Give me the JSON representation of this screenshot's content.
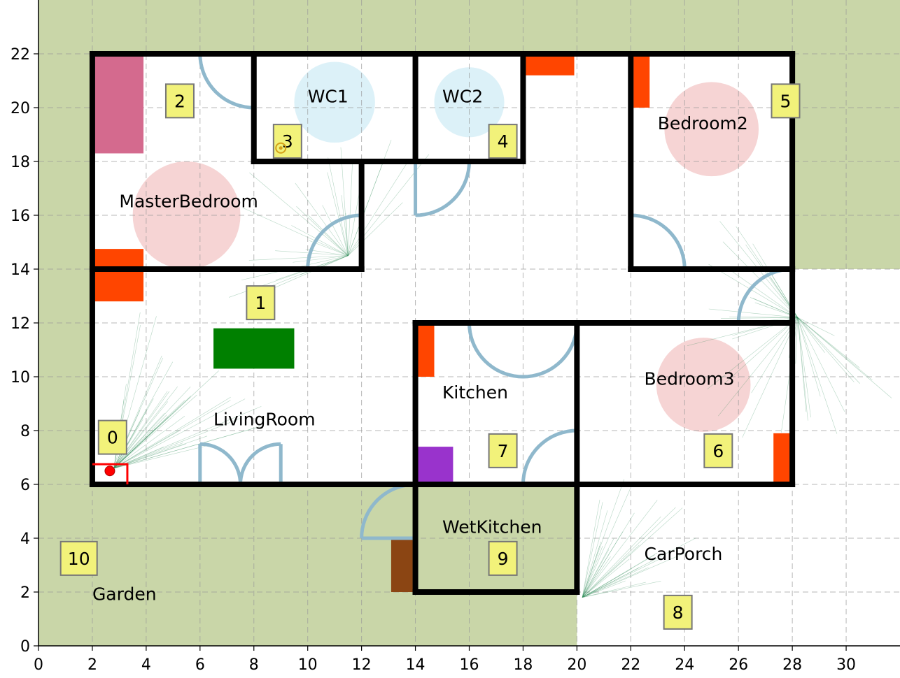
{
  "chart_data": {
    "type": "floor-plan",
    "xlim": [
      0,
      32
    ],
    "ylim": [
      0,
      24
    ],
    "x_ticks": [
      "0",
      "2",
      "4",
      "6",
      "8",
      "10",
      "12",
      "14",
      "16",
      "18",
      "20",
      "22",
      "24",
      "26",
      "28",
      "30"
    ],
    "y_ticks": [
      "0",
      "2",
      "4",
      "6",
      "8",
      "10",
      "12",
      "14",
      "16",
      "18",
      "20",
      "22"
    ],
    "grid": true,
    "colors": {
      "outdoor": "#c9d6a8",
      "wall": "#000000",
      "door": "#8fb8cc",
      "radiator": "#ff4500",
      "bed": "#d46a8e",
      "sofa": "#008000",
      "appliance": "#9933cc",
      "entrance_mat": "#8b4513",
      "marker_fill": "#f2f27a",
      "robot": "#ff0000",
      "grid": "#999999"
    },
    "outdoor_regions": [
      {
        "name": "outdoor-top",
        "x0": 0,
        "y0": 22,
        "x1": 32,
        "y1": 24
      },
      {
        "name": "outdoor-left",
        "x0": 0,
        "y0": 0,
        "x1": 2,
        "y1": 22
      },
      {
        "name": "outdoor-right",
        "x0": 28,
        "y0": 14,
        "x1": 32,
        "y1": 22
      },
      {
        "name": "garden-area",
        "x0": 2,
        "y0": 0,
        "x1": 20,
        "y1": 6
      }
    ],
    "rooms": [
      {
        "name": "MasterBedroom",
        "label_x": 3.0,
        "label_y": 16.3,
        "circle_x": 5.5,
        "circle_y": 16.0,
        "circle_r": 2.0,
        "circle_color": "#f4cccc"
      },
      {
        "name": "WC1",
        "label_x": 10.0,
        "label_y": 20.2,
        "circle_x": 11.0,
        "circle_y": 20.2,
        "circle_r": 1.5,
        "circle_color": "#d6eff7"
      },
      {
        "name": "WC2",
        "label_x": 15.0,
        "label_y": 20.2,
        "circle_x": 16.0,
        "circle_y": 20.2,
        "circle_r": 1.3,
        "circle_color": "#d6eff7"
      },
      {
        "name": "Bedroom2",
        "label_x": 23.0,
        "label_y": 19.2,
        "circle_x": 25.0,
        "circle_y": 19.2,
        "circle_r": 1.75,
        "circle_color": "#f4cccc"
      },
      {
        "name": "LivingRoom",
        "label_x": 6.5,
        "label_y": 8.2,
        "circle_x": null,
        "circle_y": null,
        "circle_r": 0,
        "circle_color": ""
      },
      {
        "name": "Kitchen",
        "label_x": 15.0,
        "label_y": 9.2,
        "circle_x": null,
        "circle_y": null,
        "circle_r": 0,
        "circle_color": ""
      },
      {
        "name": "Bedroom3",
        "label_x": 22.5,
        "label_y": 9.7,
        "circle_x": 24.7,
        "circle_y": 9.7,
        "circle_r": 1.75,
        "circle_color": "#f4cccc"
      },
      {
        "name": "WetKitchen",
        "label_x": 15.0,
        "label_y": 4.2,
        "circle_x": null,
        "circle_y": null,
        "circle_r": 0,
        "circle_color": ""
      },
      {
        "name": "CarPorch",
        "label_x": 22.5,
        "label_y": 3.2,
        "circle_x": null,
        "circle_y": null,
        "circle_r": 0,
        "circle_color": ""
      },
      {
        "name": "Garden",
        "label_x": 2.0,
        "label_y": 1.7,
        "circle_x": null,
        "circle_y": null,
        "circle_r": 0,
        "circle_color": ""
      }
    ],
    "markers": [
      {
        "id": "0",
        "x": 2.75,
        "y": 7.75
      },
      {
        "id": "1",
        "x": 8.25,
        "y": 12.75
      },
      {
        "id": "2",
        "x": 5.25,
        "y": 20.25
      },
      {
        "id": "3",
        "x": 9.25,
        "y": 18.75
      },
      {
        "id": "4",
        "x": 17.25,
        "y": 18.75
      },
      {
        "id": "5",
        "x": 27.75,
        "y": 20.25
      },
      {
        "id": "6",
        "x": 25.25,
        "y": 7.25
      },
      {
        "id": "7",
        "x": 17.25,
        "y": 7.25
      },
      {
        "id": "8",
        "x": 23.75,
        "y": 1.25
      },
      {
        "id": "9",
        "x": 17.25,
        "y": 3.25
      },
      {
        "id": "10",
        "x": 1.5,
        "y": 3.25
      }
    ],
    "walls": [
      [
        2,
        6,
        2,
        22
      ],
      [
        2,
        22,
        28,
        22
      ],
      [
        28,
        22,
        28,
        6
      ],
      [
        14,
        6,
        28,
        6
      ],
      [
        2,
        6,
        14,
        6
      ],
      [
        2,
        14,
        12,
        14
      ],
      [
        12,
        14,
        12,
        18
      ],
      [
        8,
        18,
        18,
        18
      ],
      [
        8,
        18,
        8,
        22
      ],
      [
        14,
        18,
        14,
        22
      ],
      [
        18,
        18,
        18,
        22
      ],
      [
        22,
        14,
        22,
        22
      ],
      [
        22,
        14,
        28,
        14
      ],
      [
        14,
        12,
        28,
        12
      ],
      [
        14,
        12,
        14,
        2
      ],
      [
        20,
        12,
        20,
        2
      ],
      [
        14,
        2,
        20,
        2
      ]
    ],
    "furniture": [
      {
        "kind": "bed",
        "x0": 2.1,
        "y0": 18.3,
        "x1": 3.9,
        "y1": 21.9
      },
      {
        "kind": "radiator",
        "x0": 2.1,
        "y0": 14.05,
        "x1": 3.9,
        "y1": 14.75
      },
      {
        "kind": "radiator",
        "x0": 2.1,
        "y0": 12.8,
        "x1": 3.9,
        "y1": 13.95
      },
      {
        "kind": "radiator",
        "x0": 18.1,
        "y0": 21.2,
        "x1": 19.9,
        "y1": 21.9
      },
      {
        "kind": "radiator",
        "x0": 22.1,
        "y0": 20.0,
        "x1": 22.7,
        "y1": 21.9
      },
      {
        "kind": "radiator",
        "x0": 14.1,
        "y0": 10.0,
        "x1": 14.7,
        "y1": 11.9
      },
      {
        "kind": "radiator",
        "x0": 27.3,
        "y0": 6.1,
        "x1": 27.9,
        "y1": 7.9
      },
      {
        "kind": "sofa",
        "x0": 6.5,
        "y0": 10.3,
        "x1": 9.5,
        "y1": 11.8
      },
      {
        "kind": "appliance",
        "x0": 14.1,
        "y0": 6.1,
        "x1": 15.4,
        "y1": 7.4
      },
      {
        "kind": "entrance_mat",
        "x0": 13.1,
        "y0": 2.0,
        "x1": 13.9,
        "y1": 4.0
      }
    ],
    "doors": [
      {
        "hx": 8.0,
        "hy": 22.0,
        "r": 2.0,
        "a0": 180,
        "a1": 270
      },
      {
        "hx": 12.0,
        "hy": 14.0,
        "r": 2.0,
        "a0": 90,
        "a1": 180
      },
      {
        "hx": 14.0,
        "hy": 18.0,
        "r": 2.0,
        "a0": 270,
        "a1": 360
      },
      {
        "hx": 22.0,
        "hy": 14.0,
        "r": 2.0,
        "a0": 0,
        "a1": 90
      },
      {
        "hx": 28.0,
        "hy": 12.0,
        "r": 2.0,
        "a0": 90,
        "a1": 180
      },
      {
        "hx": 18.0,
        "hy": 12.0,
        "r": 2.0,
        "a0": 180,
        "a1": 360
      },
      {
        "hx": 20.0,
        "hy": 6.0,
        "r": 2.0,
        "a0": 90,
        "a1": 180
      },
      {
        "hx": 14.0,
        "hy": 4.0,
        "r": 2.0,
        "a0": 90,
        "a1": 180
      },
      {
        "hx": 6.0,
        "hy": 6.0,
        "r": 1.5,
        "a0": 0,
        "a1": 90
      },
      {
        "hx": 9.0,
        "hy": 6.0,
        "r": 1.5,
        "a0": 90,
        "a1": 180
      }
    ],
    "robot": {
      "x": 2.65,
      "y": 6.5
    },
    "robot_box": {
      "x0": 2.0,
      "y0": 6.0,
      "x1": 3.3,
      "y1": 6.75
    },
    "target": {
      "x": 9.0,
      "y": 18.5
    }
  }
}
